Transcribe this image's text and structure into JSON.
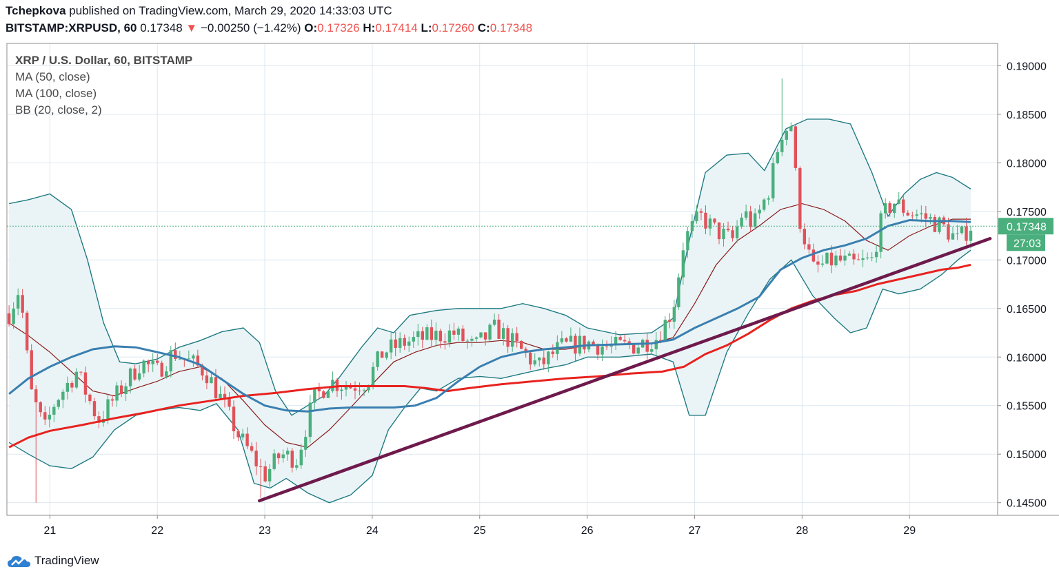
{
  "header": {
    "author": "Tchepkova",
    "published_text": " published on TradingView.com, March 29, 2020 14:33:03 UTC",
    "symbol": "BITSTAMP:XRPUSD, 60",
    "last": "0.17348",
    "change": "−0.00250 (−1.42%)",
    "o_label": "O:",
    "o_value": "0.17326",
    "h_label": "H:",
    "h_value": "0.17414",
    "l_label": "L:",
    "l_value": "0.17260",
    "c_label": "C:",
    "c_value": "0.17348"
  },
  "legend": {
    "title": "XRP / U.S. Dollar, 60, BITSTAMP",
    "ma50": "MA (50, close)",
    "ma100": "MA (100, close)",
    "bb": "BB (20, close, 2)"
  },
  "footer": {
    "brand": "TradingView"
  },
  "colors": {
    "up": "#4aaf7c",
    "down": "#e0525a",
    "ma50": "#3a7fb0",
    "ma100": "#e8221f",
    "bb": "#1f7a82",
    "bb_fill": "#eaf4f6",
    "bb_mid": "#8b1a1a",
    "trend": "#6e1a4c",
    "grid": "#dbe7ef",
    "price_tag": "#4aaf7c"
  },
  "chart_data": {
    "type": "candlestick",
    "title": "XRP / U.S. Dollar, 60, BITSTAMP",
    "x_tick_labels": [
      "21",
      "22",
      "23",
      "24",
      "25",
      "26",
      "27",
      "28",
      "29"
    ],
    "x_tick_days": [
      21,
      22,
      23,
      24,
      25,
      26,
      27,
      28,
      29
    ],
    "x_range_days": [
      20.6,
      29.82
    ],
    "y_tick_labels": [
      "0.19000",
      "0.18500",
      "0.18000",
      "0.17500",
      "0.17000",
      "0.16500",
      "0.16000",
      "0.15500",
      "0.15000",
      "0.14500"
    ],
    "ylim": [
      0.1437,
      0.1923
    ],
    "last_price": 0.17348,
    "last_price_label": "0.17348",
    "countdown_label": "27:03",
    "close_path": [
      [
        20.62,
        0.1645
      ],
      [
        20.72,
        0.1672
      ],
      [
        20.82,
        0.1565
      ],
      [
        20.95,
        0.1525
      ],
      [
        21.05,
        0.1555
      ],
      [
        21.25,
        0.1585
      ],
      [
        21.45,
        0.1535
      ],
      [
        21.65,
        0.1565
      ],
      [
        21.85,
        0.1595
      ],
      [
        22.0,
        0.1585
      ],
      [
        22.15,
        0.1605
      ],
      [
        22.3,
        0.1595
      ],
      [
        22.45,
        0.1585
      ],
      [
        22.6,
        0.1555
      ],
      [
        22.75,
        0.152
      ],
      [
        22.9,
        0.1495
      ],
      [
        23.0,
        0.1478
      ],
      [
        23.15,
        0.15
      ],
      [
        23.3,
        0.1495
      ],
      [
        23.45,
        0.1555
      ],
      [
        23.6,
        0.1575
      ],
      [
        23.8,
        0.157
      ],
      [
        23.95,
        0.1575
      ],
      [
        24.1,
        0.1605
      ],
      [
        24.3,
        0.1615
      ],
      [
        24.5,
        0.162
      ],
      [
        24.75,
        0.1625
      ],
      [
        24.95,
        0.161
      ],
      [
        25.15,
        0.163
      ],
      [
        25.35,
        0.161
      ],
      [
        25.55,
        0.159
      ],
      [
        25.75,
        0.161
      ],
      [
        26.0,
        0.1615
      ],
      [
        26.2,
        0.161
      ],
      [
        26.45,
        0.1612
      ],
      [
        26.65,
        0.162
      ],
      [
        26.8,
        0.165
      ],
      [
        26.9,
        0.172
      ],
      [
        27.05,
        0.1745
      ],
      [
        27.2,
        0.173
      ],
      [
        27.35,
        0.172
      ],
      [
        27.45,
        0.175
      ],
      [
        27.55,
        0.1735
      ],
      [
        27.7,
        0.1775
      ],
      [
        27.8,
        0.183
      ],
      [
        27.9,
        0.184
      ],
      [
        27.97,
        0.1745
      ],
      [
        28.1,
        0.169
      ],
      [
        28.3,
        0.17
      ],
      [
        28.5,
        0.1695
      ],
      [
        28.65,
        0.17
      ],
      [
        28.75,
        0.1745
      ],
      [
        28.85,
        0.176
      ],
      [
        28.98,
        0.175
      ],
      [
        29.12,
        0.1745
      ],
      [
        29.3,
        0.1735
      ],
      [
        29.45,
        0.172
      ],
      [
        29.57,
        0.1735
      ]
    ],
    "ma50": [
      [
        20.62,
        0.1562
      ],
      [
        20.8,
        0.1578
      ],
      [
        21.0,
        0.159
      ],
      [
        21.2,
        0.16
      ],
      [
        21.4,
        0.1608
      ],
      [
        21.6,
        0.1611
      ],
      [
        21.8,
        0.161
      ],
      [
        22.0,
        0.1605
      ],
      [
        22.2,
        0.16
      ],
      [
        22.4,
        0.1592
      ],
      [
        22.6,
        0.1577
      ],
      [
        22.8,
        0.1562
      ],
      [
        23.0,
        0.155
      ],
      [
        23.2,
        0.1545
      ],
      [
        23.4,
        0.1544
      ],
      [
        23.6,
        0.1547
      ],
      [
        23.8,
        0.1548
      ],
      [
        24.0,
        0.1548
      ],
      [
        24.2,
        0.1548
      ],
      [
        24.4,
        0.155
      ],
      [
        24.6,
        0.1558
      ],
      [
        24.8,
        0.1575
      ],
      [
        25.0,
        0.159
      ],
      [
        25.2,
        0.16
      ],
      [
        25.4,
        0.1605
      ],
      [
        25.6,
        0.1608
      ],
      [
        25.8,
        0.161
      ],
      [
        26.0,
        0.1612
      ],
      [
        26.3,
        0.1613
      ],
      [
        26.6,
        0.1614
      ],
      [
        26.8,
        0.1618
      ],
      [
        27.0,
        0.163
      ],
      [
        27.2,
        0.164
      ],
      [
        27.4,
        0.165
      ],
      [
        27.6,
        0.1662
      ],
      [
        27.8,
        0.169
      ],
      [
        28.0,
        0.1702
      ],
      [
        28.2,
        0.171
      ],
      [
        28.4,
        0.1715
      ],
      [
        28.6,
        0.1722
      ],
      [
        28.8,
        0.1735
      ],
      [
        29.0,
        0.1741
      ],
      [
        29.2,
        0.174
      ],
      [
        29.4,
        0.174
      ],
      [
        29.57,
        0.1739
      ]
    ],
    "ma100": [
      [
        20.62,
        0.1507
      ],
      [
        20.8,
        0.1517
      ],
      [
        21.0,
        0.1524
      ],
      [
        21.3,
        0.153
      ],
      [
        21.6,
        0.1537
      ],
      [
        21.9,
        0.1543
      ],
      [
        22.2,
        0.155
      ],
      [
        22.5,
        0.1555
      ],
      [
        22.8,
        0.156
      ],
      [
        23.1,
        0.1563
      ],
      [
        23.4,
        0.1567
      ],
      [
        23.7,
        0.157
      ],
      [
        24.0,
        0.157
      ],
      [
        24.3,
        0.157
      ],
      [
        24.5,
        0.1568
      ],
      [
        24.7,
        0.1565
      ],
      [
        24.9,
        0.1568
      ],
      [
        25.2,
        0.1572
      ],
      [
        25.5,
        0.1575
      ],
      [
        25.8,
        0.1578
      ],
      [
        26.1,
        0.158
      ],
      [
        26.4,
        0.1583
      ],
      [
        26.7,
        0.1585
      ],
      [
        26.9,
        0.159
      ],
      [
        27.1,
        0.1603
      ],
      [
        27.3,
        0.1612
      ],
      [
        27.5,
        0.1624
      ],
      [
        27.7,
        0.1638
      ],
      [
        27.9,
        0.165
      ],
      [
        28.1,
        0.1658
      ],
      [
        28.3,
        0.1664
      ],
      [
        28.5,
        0.1668
      ],
      [
        28.7,
        0.1675
      ],
      [
        28.9,
        0.168
      ],
      [
        29.1,
        0.1685
      ],
      [
        29.3,
        0.169
      ],
      [
        29.45,
        0.1692
      ],
      [
        29.57,
        0.1695
      ]
    ],
    "bb_mid": [
      [
        20.62,
        0.1635
      ],
      [
        20.8,
        0.1622
      ],
      [
        21.0,
        0.1605
      ],
      [
        21.2,
        0.1585
      ],
      [
        21.4,
        0.1565
      ],
      [
        21.6,
        0.156
      ],
      [
        21.8,
        0.1568
      ],
      [
        22.0,
        0.1575
      ],
      [
        22.2,
        0.1585
      ],
      [
        22.4,
        0.159
      ],
      [
        22.6,
        0.1578
      ],
      [
        22.8,
        0.1555
      ],
      [
        23.0,
        0.153
      ],
      [
        23.2,
        0.1512
      ],
      [
        23.4,
        0.1507
      ],
      [
        23.6,
        0.1525
      ],
      [
        23.8,
        0.1548
      ],
      [
        24.0,
        0.1572
      ],
      [
        24.2,
        0.1595
      ],
      [
        24.4,
        0.1605
      ],
      [
        24.6,
        0.1612
      ],
      [
        24.8,
        0.1615
      ],
      [
        25.0,
        0.1615
      ],
      [
        25.2,
        0.1617
      ],
      [
        25.4,
        0.1615
      ],
      [
        25.6,
        0.1608
      ],
      [
        25.8,
        0.1608
      ],
      [
        26.0,
        0.1612
      ],
      [
        26.3,
        0.1613
      ],
      [
        26.6,
        0.1614
      ],
      [
        26.8,
        0.162
      ],
      [
        27.0,
        0.1655
      ],
      [
        27.2,
        0.1695
      ],
      [
        27.4,
        0.172
      ],
      [
        27.6,
        0.1735
      ],
      [
        27.8,
        0.1752
      ],
      [
        28.0,
        0.1758
      ],
      [
        28.2,
        0.1752
      ],
      [
        28.4,
        0.174
      ],
      [
        28.6,
        0.172
      ],
      [
        28.8,
        0.171
      ],
      [
        29.0,
        0.1725
      ],
      [
        29.2,
        0.1735
      ],
      [
        29.4,
        0.1742
      ],
      [
        29.57,
        0.1742
      ]
    ],
    "bb_upper": [
      [
        20.62,
        0.1758
      ],
      [
        20.8,
        0.1762
      ],
      [
        21.0,
        0.1768
      ],
      [
        21.2,
        0.1752
      ],
      [
        21.35,
        0.17
      ],
      [
        21.5,
        0.1635
      ],
      [
        21.65,
        0.1595
      ],
      [
        21.8,
        0.1593
      ],
      [
        22.0,
        0.1598
      ],
      [
        22.2,
        0.161
      ],
      [
        22.4,
        0.1617
      ],
      [
        22.6,
        0.1626
      ],
      [
        22.8,
        0.163
      ],
      [
        22.95,
        0.1615
      ],
      [
        23.1,
        0.1565
      ],
      [
        23.25,
        0.154
      ],
      [
        23.4,
        0.155
      ],
      [
        23.55,
        0.156
      ],
      [
        23.7,
        0.158
      ],
      [
        23.9,
        0.161
      ],
      [
        24.05,
        0.163
      ],
      [
        24.2,
        0.1625
      ],
      [
        24.35,
        0.1643
      ],
      [
        24.6,
        0.1648
      ],
      [
        24.8,
        0.165
      ],
      [
        25.0,
        0.165
      ],
      [
        25.2,
        0.165
      ],
      [
        25.4,
        0.1655
      ],
      [
        25.6,
        0.165
      ],
      [
        25.8,
        0.1643
      ],
      [
        26.0,
        0.163
      ],
      [
        26.3,
        0.1623
      ],
      [
        26.6,
        0.1625
      ],
      [
        26.8,
        0.164
      ],
      [
        26.95,
        0.172
      ],
      [
        27.1,
        0.179
      ],
      [
        27.3,
        0.1808
      ],
      [
        27.5,
        0.181
      ],
      [
        27.65,
        0.1792
      ],
      [
        27.85,
        0.1835
      ],
      [
        28.05,
        0.1845
      ],
      [
        28.25,
        0.1845
      ],
      [
        28.45,
        0.184
      ],
      [
        28.65,
        0.179
      ],
      [
        28.8,
        0.1745
      ],
      [
        28.95,
        0.1768
      ],
      [
        29.1,
        0.1783
      ],
      [
        29.25,
        0.179
      ],
      [
        29.4,
        0.1785
      ],
      [
        29.57,
        0.1773
      ]
    ],
    "bb_lower": [
      [
        20.62,
        0.1512
      ],
      [
        20.8,
        0.15
      ],
      [
        21.0,
        0.1488
      ],
      [
        21.2,
        0.1485
      ],
      [
        21.4,
        0.1497
      ],
      [
        21.6,
        0.1525
      ],
      [
        21.8,
        0.154
      ],
      [
        22.0,
        0.1545
      ],
      [
        22.2,
        0.1548
      ],
      [
        22.4,
        0.1545
      ],
      [
        22.55,
        0.1552
      ],
      [
        22.75,
        0.1525
      ],
      [
        22.9,
        0.147
      ],
      [
        23.05,
        0.1465
      ],
      [
        23.2,
        0.1475
      ],
      [
        23.4,
        0.146
      ],
      [
        23.6,
        0.145
      ],
      [
        23.8,
        0.1458
      ],
      [
        24.0,
        0.1478
      ],
      [
        24.15,
        0.1525
      ],
      [
        24.3,
        0.1548
      ],
      [
        24.45,
        0.1568
      ],
      [
        24.6,
        0.1565
      ],
      [
        24.8,
        0.1578
      ],
      [
        25.0,
        0.158
      ],
      [
        25.2,
        0.1578
      ],
      [
        25.4,
        0.1583
      ],
      [
        25.6,
        0.1588
      ],
      [
        25.8,
        0.1592
      ],
      [
        26.0,
        0.16
      ],
      [
        26.3,
        0.16
      ],
      [
        26.6,
        0.1603
      ],
      [
        26.8,
        0.1595
      ],
      [
        26.95,
        0.154
      ],
      [
        27.1,
        0.154
      ],
      [
        27.3,
        0.1605
      ],
      [
        27.5,
        0.1645
      ],
      [
        27.7,
        0.168
      ],
      [
        27.9,
        0.17
      ],
      [
        28.1,
        0.1663
      ],
      [
        28.3,
        0.164
      ],
      [
        28.45,
        0.1625
      ],
      [
        28.6,
        0.163
      ],
      [
        28.75,
        0.167
      ],
      [
        28.9,
        0.1665
      ],
      [
        29.1,
        0.167
      ],
      [
        29.3,
        0.1685
      ],
      [
        29.45,
        0.17
      ],
      [
        29.57,
        0.171
      ]
    ],
    "trendline": [
      [
        22.95,
        0.1452
      ],
      [
        29.75,
        0.1722
      ]
    ],
    "last_price_marker": 0.17348
  }
}
